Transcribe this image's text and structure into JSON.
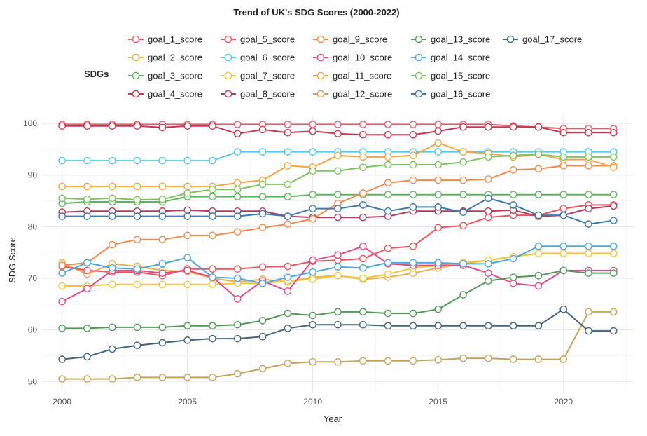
{
  "chart_data": {
    "type": "line",
    "title": "Trend of UK's SDG Scores (2000-2022)",
    "xlabel": "Year",
    "ylabel": "SDG Score",
    "legend_title": "SDGs",
    "legend_position": "top",
    "xlim": [
      1999.2,
      2022.8
    ],
    "ylim": [
      48,
      101.5
    ],
    "x_ticks": [
      2000,
      2005,
      2010,
      2015,
      2020
    ],
    "y_ticks": [
      50,
      60,
      70,
      80,
      90,
      100
    ],
    "grid": true,
    "x": [
      2000,
      2001,
      2002,
      2003,
      2004,
      2005,
      2006,
      2007,
      2008,
      2009,
      2010,
      2011,
      2012,
      2013,
      2014,
      2015,
      2016,
      2017,
      2018,
      2019,
      2020,
      2021,
      2022
    ],
    "series": [
      {
        "name": "goal_1_score",
        "color": "#e05c6e",
        "values": [
          99.8,
          99.8,
          99.8,
          99.8,
          99.8,
          99.8,
          99.8,
          99.8,
          99.8,
          99.8,
          99.8,
          99.8,
          99.8,
          99.8,
          99.8,
          99.8,
          99.8,
          99.8,
          99.5,
          99.3,
          99.0,
          99.0,
          99.0
        ]
      },
      {
        "name": "goal_2_score",
        "color": "#e9b04f",
        "values": [
          73.0,
          70.8,
          72.8,
          72.3,
          71.5,
          71.3,
          70.0,
          69.3,
          69.8,
          69.3,
          70.2,
          70.5,
          69.8,
          70.2,
          71.0,
          72.0,
          72.8,
          73.5,
          74.2,
          74.8,
          74.8,
          74.8,
          74.8
        ]
      },
      {
        "name": "goal_3_score",
        "color": "#5fb55f",
        "values": [
          84.5,
          84.8,
          84.8,
          84.8,
          84.8,
          85.8,
          85.8,
          85.8,
          85.8,
          85.8,
          86.2,
          86.2,
          86.2,
          86.2,
          86.2,
          86.2,
          86.2,
          86.2,
          86.2,
          86.2,
          86.2,
          86.2,
          86.2
        ]
      },
      {
        "name": "goal_4_score",
        "color": "#c8384f",
        "values": [
          99.5,
          99.5,
          99.5,
          99.5,
          99.2,
          99.5,
          99.5,
          98.0,
          98.8,
          98.2,
          98.5,
          98.0,
          97.8,
          97.8,
          97.8,
          98.5,
          99.3,
          99.3,
          99.3,
          99.3,
          98.2,
          98.2,
          98.2
        ]
      },
      {
        "name": "goal_5_score",
        "color": "#e9545e",
        "values": [
          72.3,
          71.5,
          71.2,
          71.2,
          70.5,
          71.8,
          71.8,
          71.8,
          72.2,
          72.3,
          73.3,
          73.5,
          73.8,
          75.8,
          76.2,
          79.8,
          80.2,
          81.8,
          82.2,
          82.2,
          83.5,
          84.2,
          84.2
        ]
      },
      {
        "name": "goal_6_score",
        "color": "#56c8e8",
        "values": [
          92.8,
          92.8,
          92.8,
          92.8,
          92.8,
          92.8,
          92.8,
          94.5,
          94.5,
          94.5,
          94.5,
          94.5,
          94.5,
          94.5,
          94.5,
          94.5,
          94.5,
          94.5,
          94.5,
          94.5,
          94.5,
          94.5,
          94.5
        ]
      },
      {
        "name": "goal_7_score",
        "color": "#f2c63a",
        "values": [
          68.5,
          68.5,
          68.8,
          68.8,
          68.8,
          68.8,
          68.8,
          69.0,
          69.0,
          69.5,
          69.8,
          70.5,
          70.0,
          70.8,
          72.0,
          72.5,
          73.0,
          73.5,
          74.2,
          74.8,
          74.8,
          74.8,
          74.8
        ]
      },
      {
        "name": "goal_8_score",
        "color": "#b23a5c",
        "values": [
          82.8,
          83.0,
          83.0,
          83.0,
          83.0,
          83.2,
          83.0,
          83.0,
          83.0,
          82.0,
          81.8,
          81.8,
          81.8,
          82.0,
          83.0,
          83.0,
          83.0,
          83.0,
          83.2,
          82.0,
          82.2,
          83.5,
          84.0
        ]
      },
      {
        "name": "goal_9_score",
        "color": "#f08a4b",
        "values": [
          72.5,
          73.0,
          76.5,
          77.5,
          77.5,
          78.3,
          78.3,
          79.0,
          79.8,
          80.5,
          81.5,
          84.5,
          86.5,
          88.5,
          89.0,
          89.0,
          89.0,
          89.2,
          91.0,
          91.2,
          91.8,
          91.8,
          91.8
        ]
      },
      {
        "name": "goal_10_score",
        "color": "#e54a8a",
        "values": [
          65.5,
          68.0,
          71.5,
          71.5,
          71.0,
          71.5,
          70.2,
          66.0,
          69.5,
          67.5,
          73.5,
          74.5,
          76.2,
          72.8,
          72.5,
          72.5,
          72.5,
          71.0,
          69.0,
          68.5,
          71.5,
          71.5,
          71.5
        ]
      },
      {
        "name": "goal_11_score",
        "color": "#f5a53d",
        "values": [
          87.8,
          87.8,
          87.8,
          87.8,
          87.8,
          87.8,
          87.8,
          88.5,
          89.0,
          91.8,
          91.5,
          93.8,
          93.5,
          93.5,
          93.8,
          96.2,
          94.5,
          94.2,
          93.5,
          94.0,
          93.0,
          93.0,
          91.5
        ]
      },
      {
        "name": "goal_12_score",
        "color": "#c9a25a",
        "values": [
          50.5,
          50.5,
          50.5,
          50.8,
          50.8,
          50.8,
          50.8,
          51.5,
          52.5,
          53.5,
          53.8,
          53.8,
          54.0,
          54.0,
          54.0,
          54.2,
          54.5,
          54.5,
          54.3,
          54.3,
          54.3,
          63.5,
          63.5
        ]
      },
      {
        "name": "goal_13_score",
        "color": "#4f9a57",
        "values": [
          60.3,
          60.3,
          60.5,
          60.5,
          60.5,
          60.8,
          60.8,
          61.0,
          61.8,
          63.2,
          62.8,
          63.5,
          63.5,
          63.2,
          63.2,
          64.0,
          66.8,
          69.5,
          70.2,
          70.5,
          71.5,
          71.0,
          71.0
        ]
      },
      {
        "name": "goal_14_score",
        "color": "#4ea7da",
        "values": [
          71.0,
          73.0,
          72.0,
          71.8,
          72.8,
          74.0,
          70.2,
          70.0,
          69.0,
          70.2,
          71.2,
          72.2,
          72.0,
          73.0,
          73.0,
          73.0,
          72.8,
          72.8,
          73.8,
          76.2,
          76.2,
          76.2,
          76.2
        ]
      },
      {
        "name": "goal_15_score",
        "color": "#7cc45d",
        "values": [
          85.5,
          85.3,
          85.5,
          85.2,
          85.3,
          86.5,
          87.2,
          87.2,
          88.2,
          88.2,
          90.8,
          90.8,
          91.5,
          92.0,
          92.0,
          92.0,
          92.5,
          93.5,
          93.8,
          94.0,
          93.5,
          93.5,
          93.5
        ]
      },
      {
        "name": "goal_16_score",
        "color": "#3c79ad",
        "values": [
          82.0,
          82.0,
          82.0,
          82.0,
          82.0,
          82.0,
          82.0,
          82.0,
          82.5,
          82.0,
          83.5,
          83.5,
          84.2,
          83.0,
          83.8,
          83.8,
          82.8,
          85.5,
          84.2,
          82.2,
          82.2,
          80.5,
          81.2
        ]
      },
      {
        "name": "goal_17_score",
        "color": "#44637f",
        "values": [
          54.3,
          54.8,
          56.3,
          57.0,
          57.5,
          58.0,
          58.3,
          58.3,
          58.7,
          60.3,
          61.0,
          61.0,
          61.0,
          60.8,
          60.8,
          60.8,
          60.8,
          60.8,
          60.8,
          60.8,
          64.0,
          59.8,
          59.8
        ]
      }
    ]
  }
}
